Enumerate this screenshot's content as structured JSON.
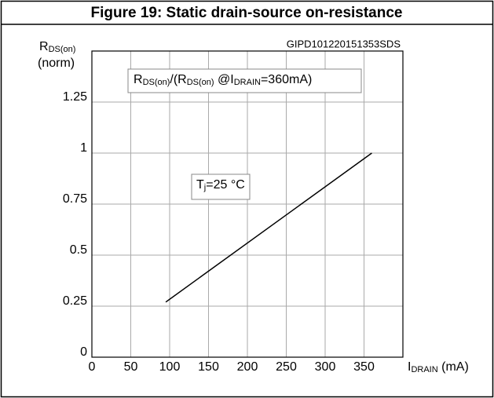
{
  "chart_data": {
    "type": "line",
    "title": "Figure 19: Static drain-source on-resistance",
    "code": "GIPD101220151353SDS",
    "ylabel": [
      [
        {
          "text": "R"
        },
        {
          "text": "DS(on)",
          "sub": true
        }
      ],
      [
        {
          "text": "(norm)"
        }
      ]
    ],
    "xlabel": [
      [
        {
          "text": "I"
        },
        {
          "text": "DRAIN",
          "sub": true
        },
        {
          "text": " (mA)"
        }
      ]
    ],
    "annotations": [
      [
        {
          "text": "R"
        },
        {
          "text": "DS(on)",
          "sub": true
        },
        {
          "text": "/(R"
        },
        {
          "text": "DS(on)",
          "sub": true
        },
        {
          "text": " @I"
        },
        {
          "text": "DRAIN",
          "sub": true
        },
        {
          "text": "=360mA)"
        }
      ],
      [
        {
          "text": "T"
        },
        {
          "text": "j",
          "sub": true
        },
        {
          "text": "=25 °C"
        }
      ]
    ],
    "x": [
      95,
      360
    ],
    "values": [
      0.27,
      1.0
    ],
    "color": "#000000",
    "xlim": [
      0,
      400
    ],
    "xticks": [
      0,
      50,
      100,
      150,
      200,
      250,
      300,
      350
    ],
    "ylim": [
      0,
      1.5
    ],
    "yticks": [
      0,
      0.25,
      0.5,
      0.75,
      1,
      1.25
    ],
    "grid": true
  }
}
